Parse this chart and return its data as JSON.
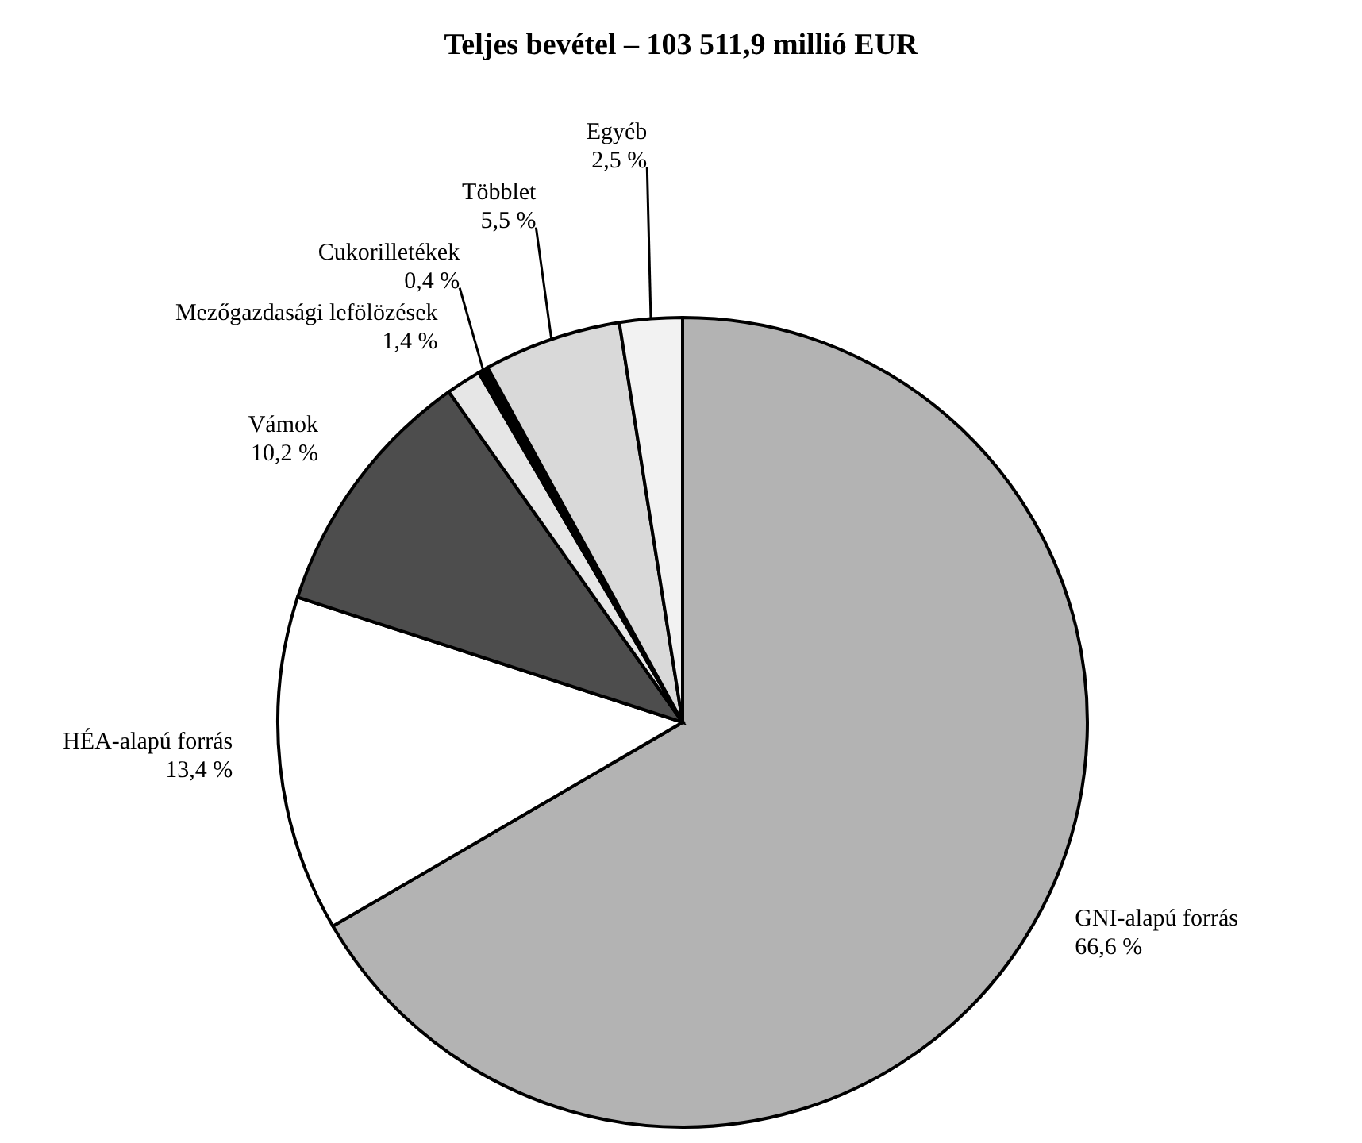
{
  "chart_data": {
    "type": "pie",
    "title": "Teljes bevétel – 103 511,9 millió EUR",
    "categories": [
      "GNI-alapú forrás",
      "HÉA-alapú forrás",
      "Vámok",
      "Mezőgazdasági lefölözések",
      "Cukorilletékek",
      "Többlet",
      "Egyéb"
    ],
    "values": [
      66.6,
      13.4,
      10.2,
      1.4,
      0.4,
      5.5,
      2.5
    ],
    "value_labels": [
      "66,6 %",
      "13,4 %",
      "10,2 %",
      "1,4 %",
      "0,4 %",
      "5,5 %",
      "2,5 %"
    ],
    "colors": [
      "#b3b3b3",
      "#ffffff",
      "#4d4d4d",
      "#e6e6e6",
      "#000000",
      "#d9d9d9",
      "#f2f2f2"
    ]
  }
}
